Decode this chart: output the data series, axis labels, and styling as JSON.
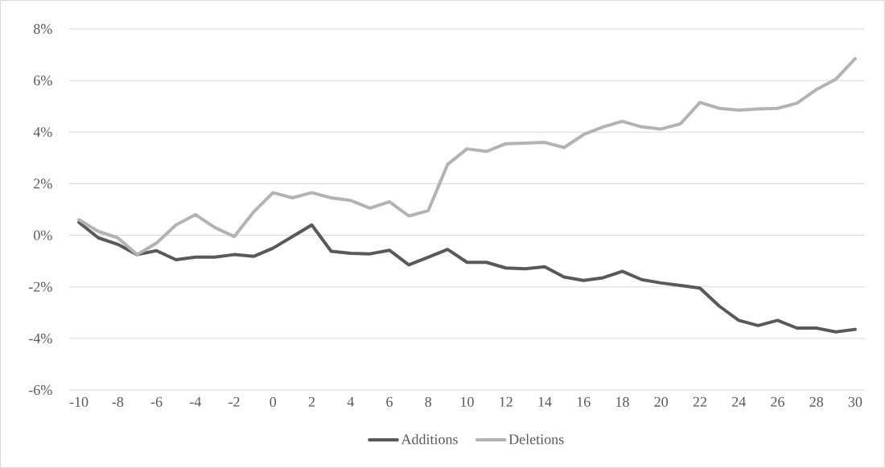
{
  "chart_data": {
    "type": "line",
    "x": [
      -10,
      -9,
      -8,
      -7,
      -6,
      -5,
      -4,
      -3,
      -2,
      -1,
      0,
      1,
      2,
      3,
      4,
      5,
      6,
      7,
      8,
      9,
      10,
      11,
      12,
      13,
      14,
      15,
      16,
      17,
      18,
      19,
      20,
      21,
      22,
      23,
      24,
      25,
      26,
      27,
      28,
      29,
      30
    ],
    "series": [
      {
        "name": "Additions",
        "color": "#595959",
        "values": [
          0.5,
          -0.1,
          -0.35,
          -0.75,
          -0.6,
          -0.95,
          -0.85,
          -0.85,
          -0.75,
          -0.82,
          -0.5,
          -0.05,
          0.4,
          -0.62,
          -0.7,
          -0.72,
          -0.58,
          -1.15,
          -0.85,
          -0.55,
          -1.05,
          -1.05,
          -1.27,
          -1.3,
          -1.22,
          -1.62,
          -1.75,
          -1.65,
          -1.4,
          -1.72,
          -1.85,
          -1.95,
          -2.05,
          -2.75,
          -3.3,
          -3.5,
          -3.3,
          -3.6,
          -3.6,
          -3.75,
          -3.65
        ]
      },
      {
        "name": "Deletions",
        "color": "#b3b3b3",
        "values": [
          0.6,
          0.15,
          -0.1,
          -0.75,
          -0.3,
          0.4,
          0.8,
          0.3,
          -0.05,
          0.9,
          1.65,
          1.45,
          1.65,
          1.45,
          1.35,
          1.05,
          1.3,
          0.75,
          0.95,
          2.75,
          3.35,
          3.25,
          3.55,
          3.57,
          3.6,
          3.4,
          3.9,
          4.2,
          4.42,
          4.2,
          4.12,
          4.32,
          5.15,
          4.92,
          4.85,
          4.9,
          4.92,
          5.12,
          5.65,
          6.05,
          6.85
        ]
      }
    ],
    "xlim": [
      -10.5,
      30.5
    ],
    "xticks": [
      -10,
      -8,
      -6,
      -4,
      -2,
      0,
      2,
      4,
      6,
      8,
      10,
      12,
      14,
      16,
      18,
      20,
      22,
      24,
      26,
      28,
      30
    ],
    "ylim": [
      -6,
      8
    ],
    "yticks": [
      {
        "value": -6,
        "label": "-6%"
      },
      {
        "value": -4,
        "label": "-4%"
      },
      {
        "value": -2,
        "label": "-2%"
      },
      {
        "value": 0,
        "label": "0%"
      },
      {
        "value": 2,
        "label": "2%"
      },
      {
        "value": 4,
        "label": "4%"
      },
      {
        "value": 6,
        "label": "6%"
      },
      {
        "value": 8,
        "label": "8%"
      }
    ],
    "grid": "y",
    "legend": "bottom",
    "marker": "none",
    "line_style": "solid"
  }
}
